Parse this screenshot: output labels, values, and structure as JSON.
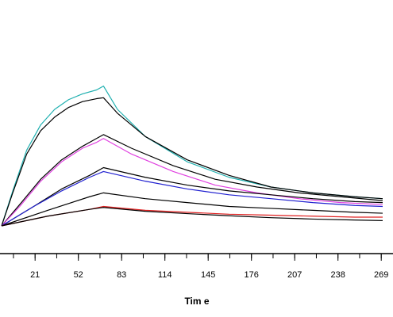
{
  "chart_data": {
    "type": "line",
    "title": "",
    "xlabel": "Tim e",
    "ylabel": "",
    "xlim": [
      -3,
      274
    ],
    "ylim": [
      0,
      1
    ],
    "x_ticks": [
      21,
      52,
      83,
      114,
      145,
      176,
      207,
      238,
      269
    ],
    "x_tick_labels": [
      "21",
      "52",
      "83",
      "114",
      "145",
      "176",
      "207",
      "238",
      "269"
    ],
    "grid": false,
    "legend": "none",
    "series": [
      {
        "color": "#20b0b0",
        "x": [
          -3,
          5,
          15,
          25,
          35,
          45,
          55,
          65,
          70,
          80,
          100,
          130,
          160,
          190,
          220,
          250,
          270
        ],
        "y": [
          0,
          0.18,
          0.39,
          0.52,
          0.6,
          0.65,
          0.68,
          0.7,
          0.72,
          0.6,
          0.46,
          0.33,
          0.25,
          0.2,
          0.17,
          0.15,
          0.14
        ]
      },
      {
        "color": "#000000",
        "x": [
          -3,
          5,
          15,
          25,
          35,
          45,
          55,
          65,
          70,
          80,
          100,
          130,
          160,
          190,
          220,
          250,
          270
        ],
        "y": [
          0,
          0.17,
          0.37,
          0.49,
          0.56,
          0.61,
          0.64,
          0.655,
          0.66,
          0.58,
          0.46,
          0.34,
          0.26,
          0.2,
          0.17,
          0.15,
          0.14
        ]
      },
      {
        "color": "#000000",
        "x": [
          -3,
          10,
          25,
          40,
          55,
          65,
          70,
          90,
          120,
          150,
          180,
          210,
          240,
          270
        ],
        "y": [
          0,
          0.11,
          0.24,
          0.34,
          0.41,
          0.45,
          0.47,
          0.4,
          0.31,
          0.24,
          0.2,
          0.17,
          0.15,
          0.13
        ]
      },
      {
        "color": "#e040e0",
        "x": [
          -3,
          10,
          25,
          40,
          55,
          65,
          70,
          90,
          120,
          150,
          180,
          210,
          240,
          270
        ],
        "y": [
          0,
          0.1,
          0.23,
          0.33,
          0.4,
          0.43,
          0.45,
          0.37,
          0.28,
          0.21,
          0.17,
          0.14,
          0.12,
          0.11
        ]
      },
      {
        "color": "#000000",
        "x": [
          -3,
          20,
          40,
          60,
          70,
          100,
          130,
          160,
          190,
          220,
          250,
          270
        ],
        "y": [
          0,
          0.1,
          0.19,
          0.26,
          0.3,
          0.25,
          0.21,
          0.18,
          0.16,
          0.14,
          0.125,
          0.12
        ]
      },
      {
        "color": "#2020d0",
        "x": [
          -3,
          20,
          40,
          60,
          70,
          100,
          130,
          160,
          190,
          220,
          250,
          270
        ],
        "y": [
          0,
          0.1,
          0.18,
          0.25,
          0.28,
          0.23,
          0.19,
          0.16,
          0.14,
          0.12,
          0.105,
          0.1
        ]
      },
      {
        "color": "#000000",
        "x": [
          -3,
          30,
          60,
          70,
          100,
          130,
          160,
          190,
          220,
          250,
          270
        ],
        "y": [
          0,
          0.08,
          0.15,
          0.17,
          0.14,
          0.12,
          0.1,
          0.09,
          0.08,
          0.07,
          0.065
        ]
      },
      {
        "color": "#e02020",
        "x": [
          -3,
          30,
          60,
          70,
          100,
          130,
          160,
          190,
          220,
          250,
          270
        ],
        "y": [
          0,
          0.05,
          0.085,
          0.1,
          0.08,
          0.07,
          0.06,
          0.055,
          0.05,
          0.045,
          0.045
        ]
      },
      {
        "color": "#000000",
        "x": [
          -3,
          30,
          60,
          70,
          100,
          130,
          160,
          190,
          220,
          250,
          270
        ],
        "y": [
          0,
          0.05,
          0.085,
          0.095,
          0.075,
          0.063,
          0.052,
          0.042,
          0.035,
          0.03,
          0.027
        ]
      }
    ]
  }
}
